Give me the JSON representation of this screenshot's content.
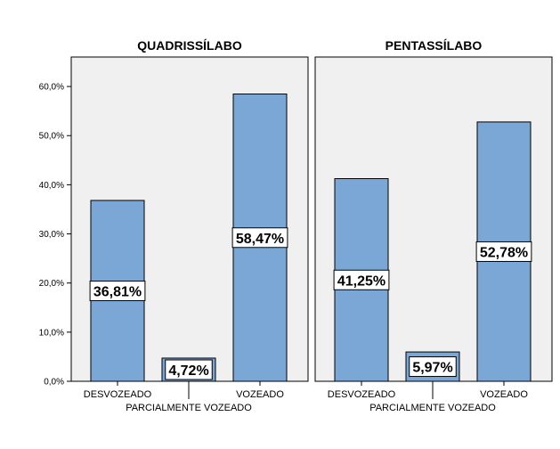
{
  "chart_data": {
    "type": "bar",
    "categories": [
      "DESVOZEADO",
      "PARCIALMENTE VOZEADO",
      "VOZEADO"
    ],
    "ylim": [
      0,
      66
    ],
    "yticks": [
      "0,0%",
      "10,0%",
      "20,0%",
      "30,0%",
      "40,0%",
      "50,0%",
      "60,0%"
    ],
    "grid": false,
    "bar_color": "#7BA7D6",
    "panel_background": "#F0F0F0",
    "panels": [
      {
        "title": "QUADRISSÍLABO",
        "values": [
          36.81,
          4.72,
          58.47
        ],
        "value_labels": [
          "36,81%",
          "4,72%",
          "58,47%"
        ]
      },
      {
        "title": "PENTASSÍLABO",
        "values": [
          41.25,
          5.97,
          52.78
        ],
        "value_labels": [
          "41,25%",
          "5,97%",
          "52,78%"
        ]
      }
    ]
  }
}
